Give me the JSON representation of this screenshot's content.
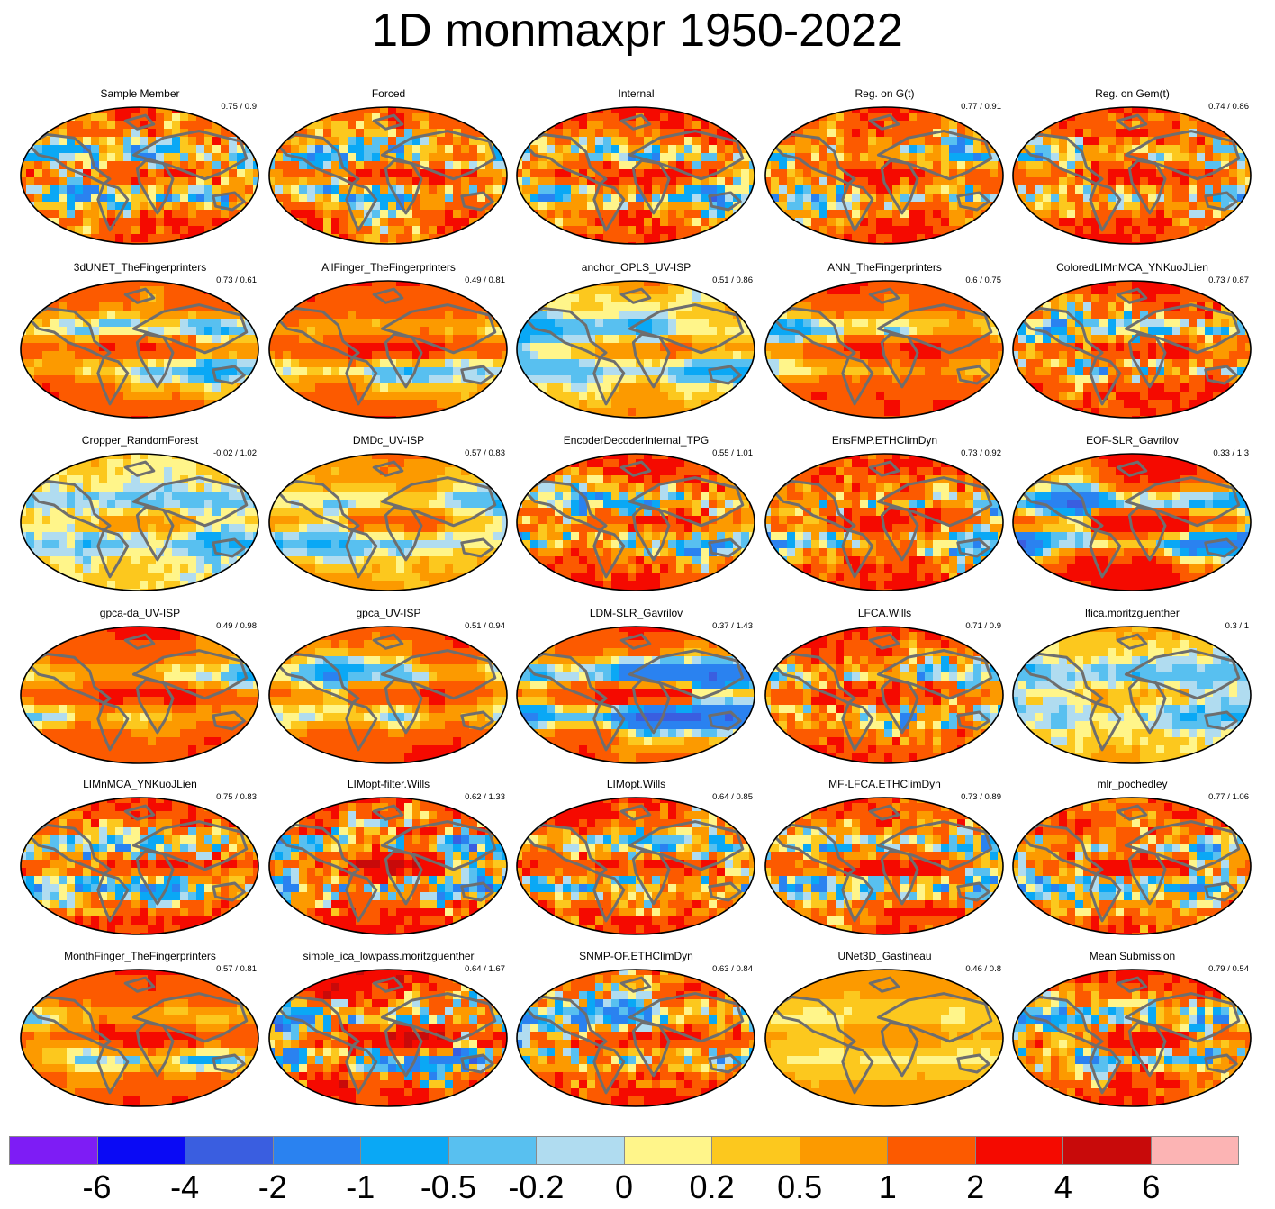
{
  "title": "1D monmaxpr 1950-2022",
  "chart_data": {
    "type": "heatmap",
    "title": "1D monmaxpr 1950-2022",
    "projection": "global ellipse map with coastlines",
    "panels": [
      {
        "name": "Sample Member",
        "stats": "0.75 / 0.9",
        "pattern": "noisy"
      },
      {
        "name": "Forced",
        "stats": "",
        "pattern": "noisy"
      },
      {
        "name": "Internal",
        "stats": "",
        "pattern": "noisy"
      },
      {
        "name": "Reg. on G(t)",
        "stats": "0.77 / 0.91",
        "pattern": "noisy"
      },
      {
        "name": "Reg. on Gem(t)",
        "stats": "0.74 / 0.86",
        "pattern": "noisy"
      },
      {
        "name": "3dUNET_TheFingerprinters",
        "stats": "0.73 / 0.61",
        "pattern": "smooth"
      },
      {
        "name": "AllFinger_TheFingerprinters",
        "stats": "0.49 / 0.81",
        "pattern": "smooth"
      },
      {
        "name": "anchor_OPLS_UV-ISP",
        "stats": "0.51 / 0.86",
        "pattern": "smooth-weak"
      },
      {
        "name": "ANN_TheFingerprinters",
        "stats": "0.6 / 0.75",
        "pattern": "smooth"
      },
      {
        "name": "ColoredLIMnMCA_YNKuoJLien",
        "stats": "0.73 / 0.87",
        "pattern": "noisy"
      },
      {
        "name": "Cropper_RandomForest",
        "stats": "-0.02 / 1.02",
        "pattern": "faint"
      },
      {
        "name": "DMDc_UV-ISP",
        "stats": "0.57 / 0.83",
        "pattern": "smooth-weak"
      },
      {
        "name": "EncoderDecoderInternal_TPG",
        "stats": "0.55 / 1.01",
        "pattern": "noisy"
      },
      {
        "name": "EnsFMP.ETHClimDyn",
        "stats": "0.73 / 0.92",
        "pattern": "noisy"
      },
      {
        "name": "EOF-SLR_Gavrilov",
        "stats": "0.33 / 1.3",
        "pattern": "strong"
      },
      {
        "name": "gpca-da_UV-ISP",
        "stats": "0.49 / 0.98",
        "pattern": "smooth"
      },
      {
        "name": "gpca_UV-ISP",
        "stats": "0.51 / 0.94",
        "pattern": "smooth"
      },
      {
        "name": "LDM-SLR_Gavrilov",
        "stats": "0.37 / 1.43",
        "pattern": "strong"
      },
      {
        "name": "LFCA.Wills",
        "stats": "0.71 / 0.9",
        "pattern": "noisy"
      },
      {
        "name": "lfica.moritzguenther",
        "stats": "0.3 / 1",
        "pattern": "faint"
      },
      {
        "name": "LIMnMCA_YNKuoJLien",
        "stats": "0.75 / 0.83",
        "pattern": "noisy"
      },
      {
        "name": "LIMopt-filter.Wills",
        "stats": "0.62 / 1.33",
        "pattern": "strong-noisy"
      },
      {
        "name": "LIMopt.Wills",
        "stats": "0.64 / 0.85",
        "pattern": "noisy"
      },
      {
        "name": "MF-LFCA.ETHClimDyn",
        "stats": "0.73 / 0.89",
        "pattern": "noisy"
      },
      {
        "name": "mlr_pochedley",
        "stats": "0.77 / 1.06",
        "pattern": "noisy"
      },
      {
        "name": "MonthFinger_TheFingerprinters",
        "stats": "0.57 / 0.81",
        "pattern": "smooth"
      },
      {
        "name": "simple_ica_lowpass.moritzguenther",
        "stats": "0.64 / 1.67",
        "pattern": "strong-noisy"
      },
      {
        "name": "SNMP-OF.ETHClimDyn",
        "stats": "0.63 / 0.84",
        "pattern": "noisy"
      },
      {
        "name": "UNet3D_Gastineau",
        "stats": "0.46 / 0.8",
        "pattern": "uniform"
      },
      {
        "name": "Mean Submission",
        "stats": "0.79 / 0.54",
        "pattern": "noisy"
      }
    ],
    "colorbar": {
      "ticks": [
        "-6",
        "-4",
        "-2",
        "-1",
        "-0.5",
        "-0.2",
        "0",
        "0.2",
        "0.5",
        "1",
        "2",
        "4",
        "6"
      ],
      "colors": [
        "#7e1cf5",
        "#0a0af5",
        "#3a5ee0",
        "#2a82f0",
        "#0aa8f5",
        "#58c0f0",
        "#b0dcf0",
        "#fff58a",
        "#fcc81e",
        "#fc9a00",
        "#fc5a00",
        "#f50a00",
        "#c80a0a",
        "#fcb4b4"
      ]
    }
  }
}
